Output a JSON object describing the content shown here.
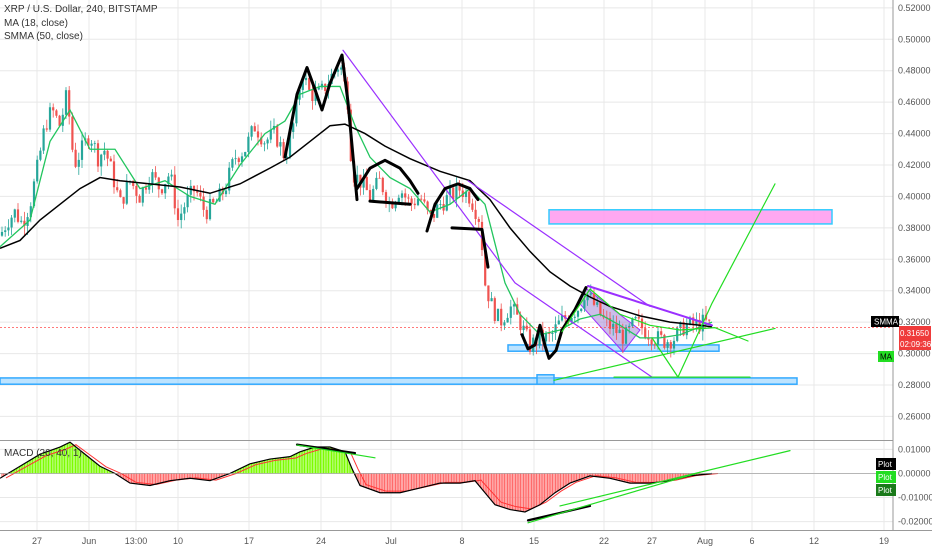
{
  "legend": {
    "main_title": "XRP / U.S. Dollar, 240, BITSTAMP",
    "ma": "MA (18, close)",
    "smma": "SMMA (50, close)",
    "macd": "MACD (20, 40, 1)"
  },
  "tags": {
    "smma_label": "SMMA",
    "price": "0.31650",
    "countdown": "02:09:36",
    "ma_label": "MA",
    "plot_label": "Plot"
  },
  "colors": {
    "price_line": "#ff4d4d",
    "ma_line": "#22c55e",
    "smma_line": "#000000",
    "up_candle": "#26a69a",
    "down_candle": "#ef5350",
    "hist_up": "#7CFC00",
    "hist_down": "#ff6b6b",
    "zone_pink": "#ff99ee",
    "zone_blue": "#8fd0ff",
    "trend_purple": "#9b30ff",
    "drawing_green": "#22dd22",
    "price_tag": "#ef3b3b",
    "grid": "#e8e8e8"
  },
  "chart_data": [
    {
      "type": "candlestick",
      "title": "XRP / U.S. Dollar, 240, BITSTAMP",
      "ylim": [
        0.245,
        0.525
      ],
      "y_ticks": [
        0.52,
        0.5,
        0.48,
        0.46,
        0.44,
        0.42,
        0.4,
        0.38,
        0.36,
        0.34,
        0.32,
        0.3,
        0.28,
        0.26
      ],
      "y_tick_labels": [
        "0.52000",
        "0.50000",
        "0.48000",
        "0.46000",
        "0.44000",
        "0.42000",
        "0.40000",
        "0.38000",
        "0.36000",
        "0.34000",
        "0.32000",
        "0.30000",
        "0.28000",
        "0.26000"
      ],
      "x_tick_labels": [
        "27",
        "Jun",
        "13:00",
        "10",
        "17",
        "24",
        "Jul",
        "8",
        "15",
        "22",
        "27",
        "Aug",
        "6",
        "12",
        "19"
      ],
      "x_tick_positions": [
        37,
        89,
        136,
        178,
        249,
        321,
        391,
        462,
        534,
        604,
        652,
        705,
        752,
        814,
        884
      ],
      "last_price": 0.3165,
      "ma_path": [
        [
          0,
          0.368
        ],
        [
          30,
          0.385
        ],
        [
          50,
          0.435
        ],
        [
          70,
          0.455
        ],
        [
          90,
          0.43
        ],
        [
          115,
          0.43
        ],
        [
          140,
          0.405
        ],
        [
          165,
          0.41
        ],
        [
          190,
          0.4
        ],
        [
          215,
          0.395
        ],
        [
          240,
          0.42
        ],
        [
          265,
          0.44
        ],
        [
          285,
          0.448
        ],
        [
          300,
          0.465
        ],
        [
          320,
          0.47
        ],
        [
          340,
          0.47
        ],
        [
          355,
          0.445
        ],
        [
          370,
          0.425
        ],
        [
          390,
          0.412
        ],
        [
          410,
          0.405
        ],
        [
          430,
          0.39
        ],
        [
          450,
          0.395
        ],
        [
          470,
          0.405
        ],
        [
          485,
          0.395
        ],
        [
          495,
          0.37
        ],
        [
          505,
          0.345
        ],
        [
          520,
          0.325
        ],
        [
          540,
          0.312
        ],
        [
          560,
          0.315
        ],
        [
          580,
          0.322
        ],
        [
          600,
          0.325
        ],
        [
          620,
          0.318
        ],
        [
          640,
          0.31
        ],
        [
          660,
          0.31
        ],
        [
          680,
          0.312
        ],
        [
          700,
          0.317
        ],
        [
          712,
          0.32
        ]
      ],
      "smma_path": [
        [
          0,
          0.367
        ],
        [
          20,
          0.372
        ],
        [
          40,
          0.385
        ],
        [
          60,
          0.395
        ],
        [
          80,
          0.405
        ],
        [
          100,
          0.412
        ],
        [
          120,
          0.41
        ],
        [
          150,
          0.408
        ],
        [
          180,
          0.406
        ],
        [
          210,
          0.402
        ],
        [
          240,
          0.408
        ],
        [
          270,
          0.418
        ],
        [
          290,
          0.425
        ],
        [
          310,
          0.435
        ],
        [
          330,
          0.445
        ],
        [
          345,
          0.446
        ],
        [
          365,
          0.44
        ],
        [
          385,
          0.432
        ],
        [
          410,
          0.424
        ],
        [
          440,
          0.416
        ],
        [
          470,
          0.41
        ],
        [
          490,
          0.398
        ],
        [
          510,
          0.38
        ],
        [
          530,
          0.365
        ],
        [
          550,
          0.352
        ],
        [
          570,
          0.343
        ],
        [
          590,
          0.336
        ],
        [
          610,
          0.33
        ],
        [
          640,
          0.324
        ],
        [
          670,
          0.32
        ],
        [
          700,
          0.318
        ],
        [
          712,
          0.317
        ]
      ],
      "candle_path": [
        [
          0,
          0.375
        ],
        [
          8,
          0.385
        ],
        [
          15,
          0.39
        ],
        [
          22,
          0.383
        ],
        [
          30,
          0.395
        ],
        [
          38,
          0.42
        ],
        [
          45,
          0.445
        ],
        [
          52,
          0.455
        ],
        [
          60,
          0.445
        ],
        [
          67,
          0.465
        ],
        [
          74,
          0.42
        ],
        [
          82,
          0.43
        ],
        [
          90,
          0.44
        ],
        [
          98,
          0.425
        ],
        [
          105,
          0.43
        ],
        [
          112,
          0.415
        ],
        [
          120,
          0.395
        ],
        [
          130,
          0.41
        ],
        [
          140,
          0.4
        ],
        [
          150,
          0.415
        ],
        [
          160,
          0.405
        ],
        [
          170,
          0.415
        ],
        [
          178,
          0.385
        ],
        [
          185,
          0.395
        ],
        [
          195,
          0.405
        ],
        [
          205,
          0.39
        ],
        [
          215,
          0.395
        ],
        [
          225,
          0.405
        ],
        [
          235,
          0.425
        ],
        [
          245,
          0.43
        ],
        [
          255,
          0.445
        ],
        [
          265,
          0.435
        ],
        [
          275,
          0.44
        ],
        [
          285,
          0.425
        ],
        [
          295,
          0.45
        ],
        [
          302,
          0.48
        ],
        [
          310,
          0.465
        ],
        [
          320,
          0.465
        ],
        [
          330,
          0.475
        ],
        [
          340,
          0.485
        ],
        [
          348,
          0.46
        ],
        [
          352,
          0.415
        ],
        [
          360,
          0.41
        ],
        [
          370,
          0.4
        ],
        [
          380,
          0.41
        ],
        [
          390,
          0.395
        ],
        [
          400,
          0.405
        ],
        [
          410,
          0.395
        ],
        [
          420,
          0.4
        ],
        [
          430,
          0.385
        ],
        [
          440,
          0.395
        ],
        [
          450,
          0.4
        ],
        [
          460,
          0.405
        ],
        [
          470,
          0.4
        ],
        [
          480,
          0.385
        ],
        [
          485,
          0.345
        ],
        [
          492,
          0.33
        ],
        [
          500,
          0.32
        ],
        [
          510,
          0.33
        ],
        [
          520,
          0.32
        ],
        [
          530,
          0.305
        ],
        [
          540,
          0.31
        ],
        [
          550,
          0.31
        ],
        [
          560,
          0.32
        ],
        [
          570,
          0.325
        ],
        [
          580,
          0.33
        ],
        [
          585,
          0.34
        ],
        [
          595,
          0.33
        ],
        [
          605,
          0.32
        ],
        [
          615,
          0.315
        ],
        [
          625,
          0.31
        ],
        [
          635,
          0.32
        ],
        [
          645,
          0.315
        ],
        [
          655,
          0.31
        ],
        [
          665,
          0.308
        ],
        [
          675,
          0.31
        ],
        [
          685,
          0.318
        ],
        [
          695,
          0.318
        ],
        [
          705,
          0.32
        ],
        [
          712,
          0.3165
        ]
      ]
    },
    {
      "type": "histogram",
      "title": "MACD (20, 40, 1)",
      "ylim": [
        -0.0235,
        0.0135
      ],
      "y_ticks": [
        0.01,
        0.0,
        -0.01,
        -0.02
      ],
      "y_tick_labels": [
        "0.01000",
        "0.00000",
        "-0.01000",
        "-0.02000"
      ],
      "macd_path": [
        [
          0,
          -0.002
        ],
        [
          20,
          0.003
        ],
        [
          40,
          0.008
        ],
        [
          60,
          0.011
        ],
        [
          70,
          0.013
        ],
        [
          85,
          0.008
        ],
        [
          100,
          0.003
        ],
        [
          115,
          0.0
        ],
        [
          130,
          -0.004
        ],
        [
          150,
          -0.005
        ],
        [
          170,
          -0.003
        ],
        [
          190,
          -0.002
        ],
        [
          210,
          -0.003
        ],
        [
          230,
          0.0
        ],
        [
          250,
          0.004
        ],
        [
          270,
          0.006
        ],
        [
          290,
          0.007
        ],
        [
          300,
          0.009
        ],
        [
          315,
          0.011
        ],
        [
          330,
          0.011
        ],
        [
          345,
          0.009
        ],
        [
          352,
          0.002
        ],
        [
          360,
          -0.005
        ],
        [
          380,
          -0.008
        ],
        [
          400,
          -0.008
        ],
        [
          420,
          -0.006
        ],
        [
          440,
          -0.004
        ],
        [
          460,
          -0.004
        ],
        [
          475,
          -0.003
        ],
        [
          485,
          -0.008
        ],
        [
          495,
          -0.013
        ],
        [
          510,
          -0.015
        ],
        [
          525,
          -0.016
        ],
        [
          540,
          -0.013
        ],
        [
          555,
          -0.008
        ],
        [
          570,
          -0.004
        ],
        [
          590,
          -0.001
        ],
        [
          610,
          -0.002
        ],
        [
          630,
          -0.004
        ],
        [
          650,
          -0.004
        ],
        [
          670,
          -0.003
        ],
        [
          690,
          -0.001
        ],
        [
          712,
          0.0
        ]
      ]
    }
  ]
}
